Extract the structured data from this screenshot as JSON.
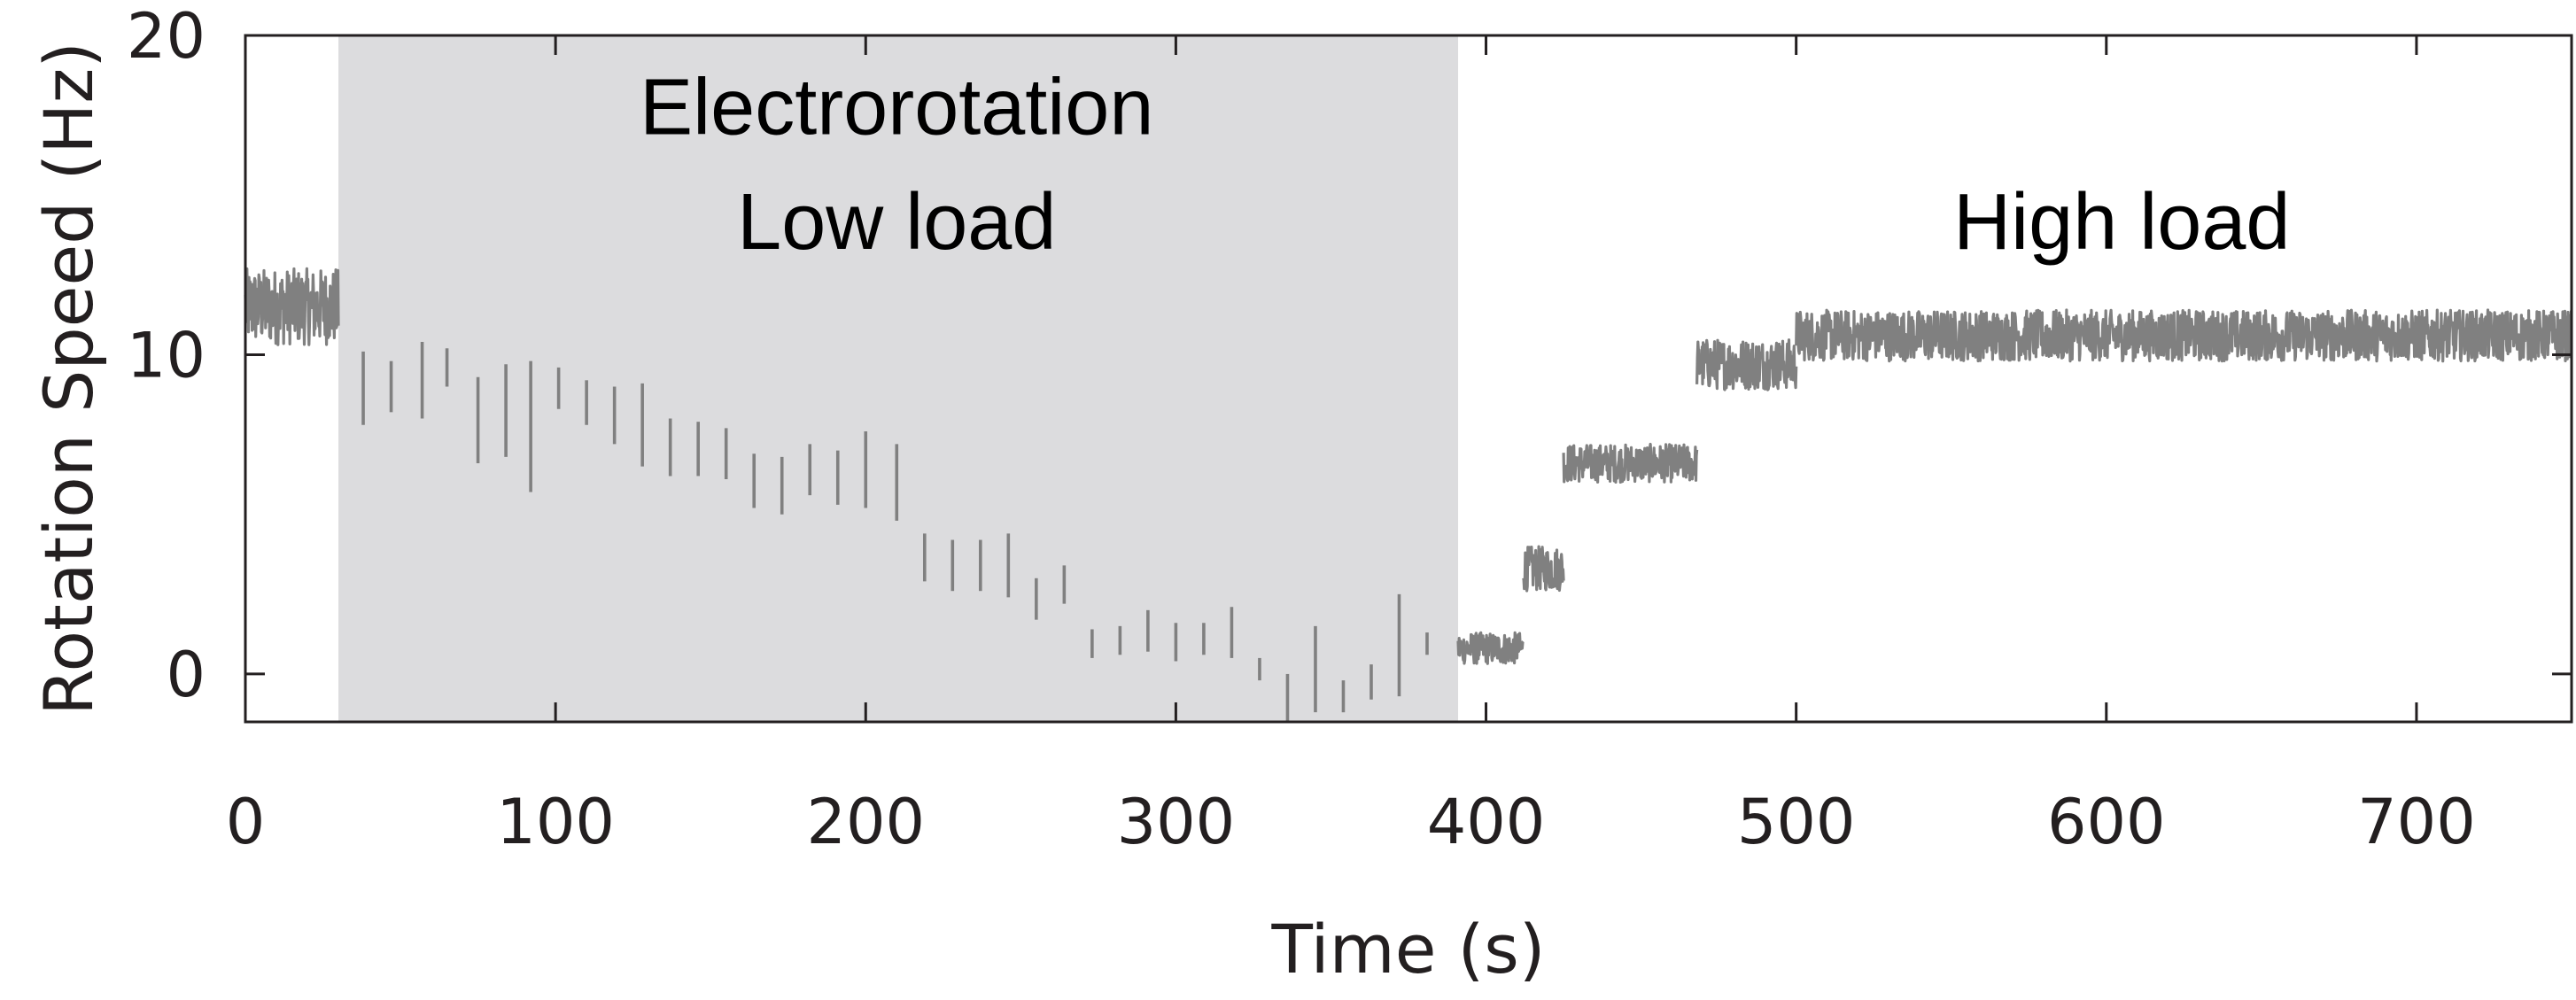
{
  "chart_data": {
    "type": "line",
    "xlabel": "Time (s)",
    "ylabel": "Rotation Speed (Hz)",
    "xlim": [
      0,
      750
    ],
    "ylim": [
      -1.5,
      20
    ],
    "xticks": [
      0,
      100,
      200,
      300,
      400,
      500,
      600,
      700
    ],
    "yticks": [
      0,
      10,
      20
    ],
    "grid": false,
    "legend": "none",
    "colors": {
      "series": "#808080",
      "shade": "#dcdcde",
      "axis": "#231f20"
    },
    "shaded_region": {
      "x": [
        30,
        391
      ]
    },
    "annotations": [
      {
        "text": "Electrorotation",
        "x": 210,
        "y": 17.8
      },
      {
        "text": "Low load",
        "x": 210,
        "y": 14.2
      },
      {
        "text": "High load",
        "x": 605,
        "y": 14.2
      }
    ],
    "segments": [
      {
        "x": [
          0,
          30
        ],
        "mean": 11.5,
        "noise": 1.2
      },
      {
        "x": [
          391,
          412
        ],
        "mean": 0.8,
        "noise": 0.5
      },
      {
        "x": [
          412,
          425
        ],
        "mean": 3.3,
        "noise": 0.7
      },
      {
        "x": [
          425,
          468
        ],
        "mean": 6.6,
        "noise": 0.6
      },
      {
        "x": [
          468,
          500
        ],
        "mean": 9.7,
        "noise": 0.8
      },
      {
        "x": [
          500,
          750
        ],
        "mean": 10.6,
        "noise": 0.8
      }
    ],
    "pulses": [
      {
        "x": 38,
        "low": 7.8,
        "high": 10.1
      },
      {
        "x": 47,
        "low": 8.2,
        "high": 9.8
      },
      {
        "x": 57,
        "low": 8.0,
        "high": 10.4
      },
      {
        "x": 65,
        "low": 9.0,
        "high": 10.2
      },
      {
        "x": 75,
        "low": 6.6,
        "high": 9.3
      },
      {
        "x": 84,
        "low": 6.8,
        "high": 9.7
      },
      {
        "x": 92,
        "low": 5.7,
        "high": 9.8
      },
      {
        "x": 101,
        "low": 8.3,
        "high": 9.6
      },
      {
        "x": 110,
        "low": 7.8,
        "high": 9.2
      },
      {
        "x": 119,
        "low": 7.2,
        "high": 9.0
      },
      {
        "x": 128,
        "low": 6.5,
        "high": 9.1
      },
      {
        "x": 137,
        "low": 6.2,
        "high": 8.0
      },
      {
        "x": 146,
        "low": 6.2,
        "high": 7.9
      },
      {
        "x": 155,
        "low": 6.1,
        "high": 7.7
      },
      {
        "x": 164,
        "low": 5.2,
        "high": 6.9
      },
      {
        "x": 173,
        "low": 5.0,
        "high": 6.8
      },
      {
        "x": 182,
        "low": 5.6,
        "high": 7.2
      },
      {
        "x": 191,
        "low": 5.3,
        "high": 7.0
      },
      {
        "x": 200,
        "low": 5.2,
        "high": 7.6
      },
      {
        "x": 210,
        "low": 4.8,
        "high": 7.2
      },
      {
        "x": 219,
        "low": 2.9,
        "high": 4.4
      },
      {
        "x": 228,
        "low": 2.6,
        "high": 4.2
      },
      {
        "x": 237,
        "low": 2.6,
        "high": 4.2
      },
      {
        "x": 246,
        "low": 2.4,
        "high": 4.4
      },
      {
        "x": 255,
        "low": 1.7,
        "high": 3.0
      },
      {
        "x": 264,
        "low": 2.2,
        "high": 3.4
      },
      {
        "x": 273,
        "low": 0.5,
        "high": 1.4
      },
      {
        "x": 282,
        "low": 0.6,
        "high": 1.5
      },
      {
        "x": 291,
        "low": 0.7,
        "high": 2.0
      },
      {
        "x": 300,
        "low": 0.4,
        "high": 1.6
      },
      {
        "x": 309,
        "low": 0.6,
        "high": 1.6
      },
      {
        "x": 318,
        "low": 0.5,
        "high": 2.1
      },
      {
        "x": 327,
        "low": -0.2,
        "high": 0.5
      },
      {
        "x": 336,
        "low": -1.5,
        "high": 0.0
      },
      {
        "x": 345,
        "low": -1.2,
        "high": 1.5
      },
      {
        "x": 354,
        "low": -1.2,
        "high": -0.2
      },
      {
        "x": 363,
        "low": -0.8,
        "high": 0.3
      },
      {
        "x": 372,
        "low": -0.7,
        "high": 2.5
      },
      {
        "x": 381,
        "low": 0.6,
        "high": 1.3
      }
    ]
  }
}
